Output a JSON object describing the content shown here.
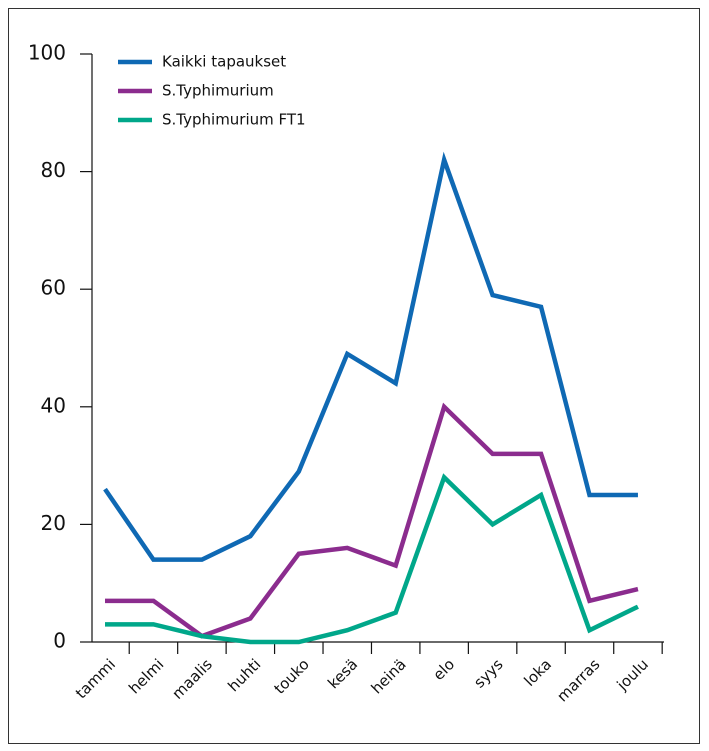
{
  "chart_data": {
    "type": "line",
    "categories": [
      "tammi",
      "helmi",
      "maalis",
      "huhti",
      "touko",
      "kesä",
      "heinä",
      "elo",
      "syys",
      "loka",
      "marras",
      "joulu"
    ],
    "series": [
      {
        "name": "Kaikki tapaukset",
        "color": "#0f69b4",
        "values": [
          26,
          14,
          14,
          18,
          29,
          49,
          44,
          82,
          59,
          57,
          25,
          25
        ]
      },
      {
        "name": "S.Typhimurium",
        "color": "#8b2c8e",
        "values": [
          7,
          7,
          1,
          4,
          15,
          16,
          13,
          40,
          32,
          32,
          7,
          9
        ]
      },
      {
        "name": "S.Typhimurium FT1",
        "color": "#00a78a",
        "values": [
          3,
          3,
          1,
          0,
          0,
          2,
          5,
          28,
          20,
          25,
          2,
          6
        ]
      }
    ],
    "ylim": [
      0,
      100
    ],
    "yticks": [
      0,
      20,
      40,
      60,
      80,
      100
    ],
    "legend": "top-left"
  }
}
